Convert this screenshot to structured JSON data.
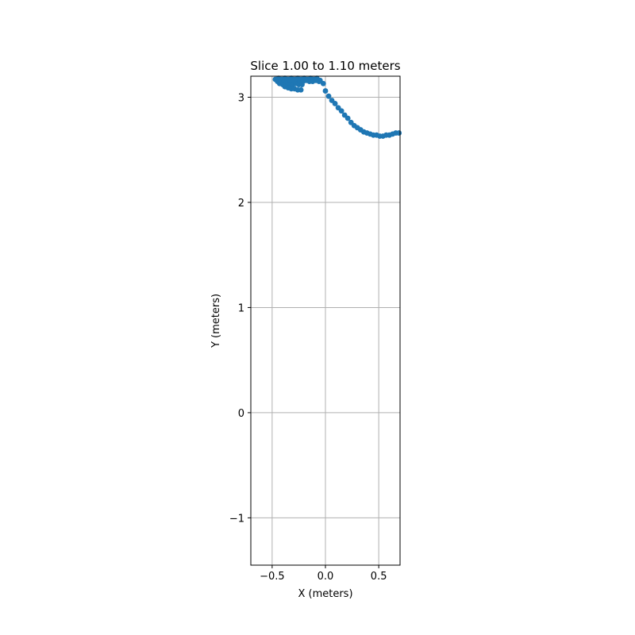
{
  "chart_data": {
    "type": "scatter",
    "title": "Slice 1.00 to 1.10 meters",
    "xlabel": "X (meters)",
    "ylabel": "Y (meters)",
    "xlim": [
      -0.7,
      0.7
    ],
    "ylim": [
      -1.45,
      3.2
    ],
    "xticks": [
      -0.5,
      0.0,
      0.5
    ],
    "xtick_labels": [
      "−0.5",
      "0.0",
      "0.5"
    ],
    "yticks": [
      -1,
      0,
      1,
      2,
      3
    ],
    "ytick_labels": [
      "−1",
      "0",
      "1",
      "2",
      "3"
    ],
    "grid": true,
    "colors": {
      "points": "#1f77b4",
      "grid": "#b0b0b0",
      "axes": "#000000"
    },
    "series": [
      {
        "x": [
          -0.47,
          -0.44,
          -0.41,
          -0.38,
          -0.35,
          -0.32,
          -0.29,
          -0.26,
          -0.23,
          -0.2,
          -0.17,
          -0.14,
          -0.11,
          -0.08,
          -0.05,
          -0.02,
          -0.45,
          -0.42,
          -0.39,
          -0.36,
          -0.33,
          -0.3,
          -0.27,
          -0.24,
          -0.21,
          -0.18,
          -0.15,
          -0.12,
          -0.09,
          -0.06,
          -0.43,
          -0.4,
          -0.37,
          -0.34,
          -0.31,
          -0.28,
          -0.25,
          -0.22,
          -0.38,
          -0.35,
          -0.32,
          -0.29,
          -0.26,
          -0.23,
          0.0,
          0.03,
          0.06,
          0.09,
          0.12,
          0.15,
          0.18,
          0.21,
          0.24,
          0.27,
          0.3,
          0.33,
          0.36,
          0.39,
          0.42,
          0.45,
          0.48,
          0.51,
          0.54,
          0.57,
          0.6,
          0.63,
          0.66,
          0.69
        ],
        "y": [
          3.17,
          3.18,
          3.17,
          3.18,
          3.17,
          3.18,
          3.17,
          3.18,
          3.17,
          3.18,
          3.17,
          3.18,
          3.17,
          3.18,
          3.16,
          3.13,
          3.15,
          3.16,
          3.15,
          3.16,
          3.15,
          3.15,
          3.16,
          3.15,
          3.15,
          3.16,
          3.15,
          3.15,
          3.16,
          3.15,
          3.13,
          3.12,
          3.13,
          3.12,
          3.12,
          3.13,
          3.12,
          3.12,
          3.1,
          3.09,
          3.08,
          3.08,
          3.07,
          3.07,
          3.06,
          3.01,
          2.97,
          2.94,
          2.9,
          2.87,
          2.83,
          2.8,
          2.76,
          2.73,
          2.71,
          2.69,
          2.67,
          2.66,
          2.65,
          2.64,
          2.64,
          2.63,
          2.63,
          2.64,
          2.64,
          2.65,
          2.66,
          2.66
        ]
      }
    ]
  }
}
